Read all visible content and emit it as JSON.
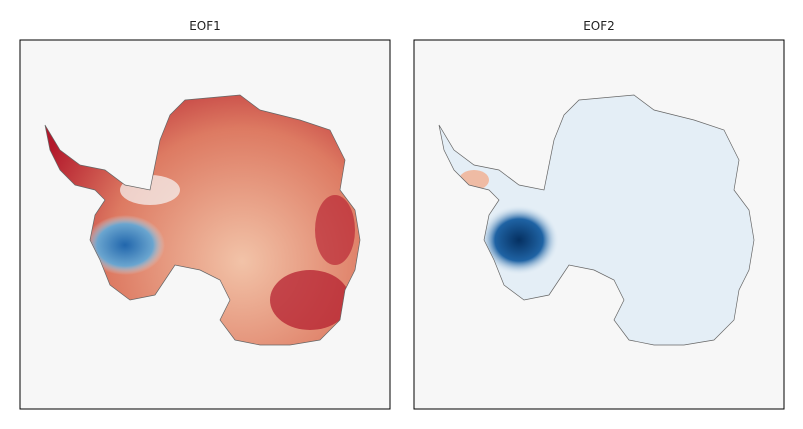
{
  "panels": [
    {
      "title": "EOF1"
    },
    {
      "title": "EOF2"
    }
  ]
}
